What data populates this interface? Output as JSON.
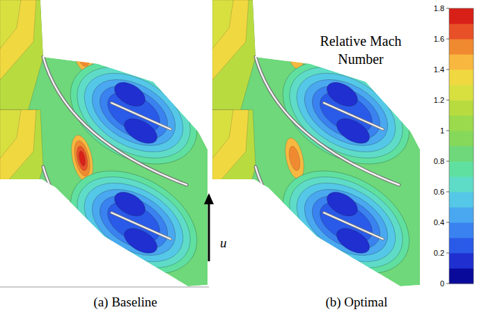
{
  "chart_data": {
    "type": "contour",
    "title": "Relative Mach Number",
    "panels": [
      {
        "caption": "(a) Baseline"
      },
      {
        "caption": "(b) Optimal"
      }
    ],
    "arrow_label": "u",
    "colorbar": {
      "range": [
        0,
        1.8
      ],
      "ticks": [
        0,
        0.2,
        0.4,
        0.6,
        0.8,
        1,
        1.2,
        1.4,
        1.6,
        1.8
      ],
      "colors": [
        "#0a0a9a",
        "#1f2fd0",
        "#2a5ae8",
        "#3a82f0",
        "#4aa8f0",
        "#55c8e8",
        "#5fdcc8",
        "#60e0a0",
        "#6ed87a",
        "#86d85a",
        "#9ada4c",
        "#b8dc40",
        "#d8e040",
        "#f0d840",
        "#f8b840",
        "#f08a30",
        "#e85028",
        "#d82018"
      ]
    }
  }
}
